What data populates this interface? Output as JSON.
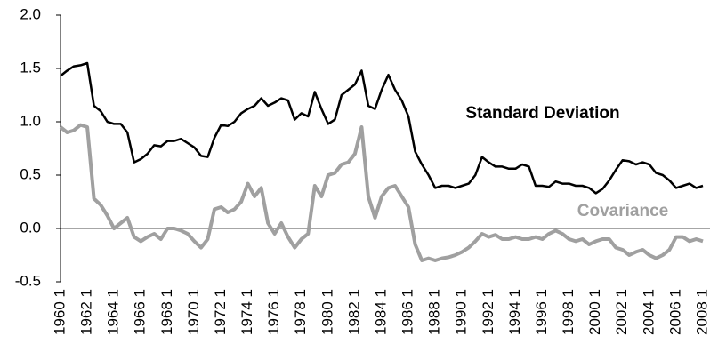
{
  "chart_data": {
    "type": "line",
    "categories": [
      "1960 1",
      null,
      null,
      null,
      "1962 1",
      null,
      null,
      null,
      "1964 1",
      null,
      null,
      null,
      "1966 1",
      null,
      null,
      null,
      "1968 1",
      null,
      null,
      null,
      "1970 1",
      null,
      null,
      null,
      "1972 1",
      null,
      null,
      null,
      "1974 1",
      null,
      null,
      null,
      "1976 1",
      null,
      null,
      null,
      "1978 1",
      null,
      null,
      null,
      "1980 1",
      null,
      null,
      null,
      "1982 1",
      null,
      null,
      null,
      "1984 1",
      null,
      null,
      null,
      "1986 1",
      null,
      null,
      null,
      "1988 1",
      null,
      null,
      null,
      "1990 1",
      null,
      null,
      null,
      "1992 1",
      null,
      null,
      null,
      "1994 1",
      null,
      null,
      null,
      "1996 1",
      null,
      null,
      null,
      "1998 1",
      null,
      null,
      null,
      "2000 1",
      null,
      null,
      null,
      "2002 1",
      null,
      null,
      null,
      "2004 1",
      null,
      null,
      null,
      "2006 1",
      null,
      null,
      null,
      "2008 1"
    ],
    "series": [
      {
        "name": "Standard Deviation",
        "color": "#000000",
        "values": [
          1.43,
          1.48,
          1.52,
          1.53,
          1.55,
          1.15,
          1.1,
          1.0,
          0.98,
          0.98,
          0.9,
          0.62,
          0.65,
          0.7,
          0.78,
          0.77,
          0.82,
          0.82,
          0.84,
          0.8,
          0.76,
          0.68,
          0.67,
          0.85,
          0.97,
          0.96,
          1.0,
          1.08,
          1.12,
          1.15,
          1.22,
          1.15,
          1.18,
          1.22,
          1.2,
          1.02,
          1.08,
          1.05,
          1.28,
          1.12,
          0.98,
          1.02,
          1.25,
          1.3,
          1.35,
          1.48,
          1.15,
          1.12,
          1.3,
          1.44,
          1.3,
          1.2,
          1.05,
          0.72,
          0.6,
          0.5,
          0.38,
          0.4,
          0.4,
          0.38,
          0.4,
          0.42,
          0.5,
          0.67,
          0.62,
          0.58,
          0.58,
          0.56,
          0.56,
          0.6,
          0.58,
          0.4,
          0.4,
          0.39,
          0.44,
          0.42,
          0.42,
          0.4,
          0.4,
          0.38,
          0.33,
          0.37,
          0.45,
          0.55,
          0.64,
          0.63,
          0.6,
          0.62,
          0.6,
          0.52,
          0.5,
          0.45,
          0.38,
          0.4,
          0.42,
          0.38,
          0.4
        ]
      },
      {
        "name": "Covariance",
        "color": "#a0a0a0",
        "values": [
          0.95,
          0.9,
          0.92,
          0.97,
          0.95,
          0.28,
          0.22,
          0.12,
          0.0,
          0.05,
          0.1,
          -0.08,
          -0.12,
          -0.08,
          -0.05,
          -0.1,
          0.0,
          0.0,
          -0.02,
          -0.05,
          -0.12,
          -0.18,
          -0.1,
          0.18,
          0.2,
          0.15,
          0.18,
          0.25,
          0.42,
          0.3,
          0.38,
          0.05,
          -0.05,
          0.05,
          -0.08,
          -0.18,
          -0.1,
          -0.05,
          0.4,
          0.3,
          0.5,
          0.52,
          0.6,
          0.62,
          0.7,
          0.95,
          0.3,
          0.1,
          0.3,
          0.38,
          0.4,
          0.3,
          0.2,
          -0.15,
          -0.3,
          -0.28,
          -0.3,
          -0.28,
          -0.27,
          -0.25,
          -0.22,
          -0.18,
          -0.12,
          -0.05,
          -0.08,
          -0.06,
          -0.1,
          -0.1,
          -0.08,
          -0.1,
          -0.1,
          -0.08,
          -0.1,
          -0.05,
          -0.02,
          -0.05,
          -0.1,
          -0.12,
          -0.1,
          -0.15,
          -0.12,
          -0.1,
          -0.1,
          -0.18,
          -0.2,
          -0.25,
          -0.22,
          -0.2,
          -0.25,
          -0.28,
          -0.25,
          -0.2,
          -0.08,
          -0.08,
          -0.12,
          -0.1,
          -0.12
        ]
      }
    ],
    "ylim": [
      -0.5,
      2.0
    ],
    "yticks": [
      {
        "value": 2.0,
        "label": "2.0"
      },
      1.5,
      {
        "value": 1.0,
        "label": "1.0"
      },
      0.5,
      {
        "value": 0.0,
        "label": "0.0"
      },
      -0.5
    ]
  }
}
